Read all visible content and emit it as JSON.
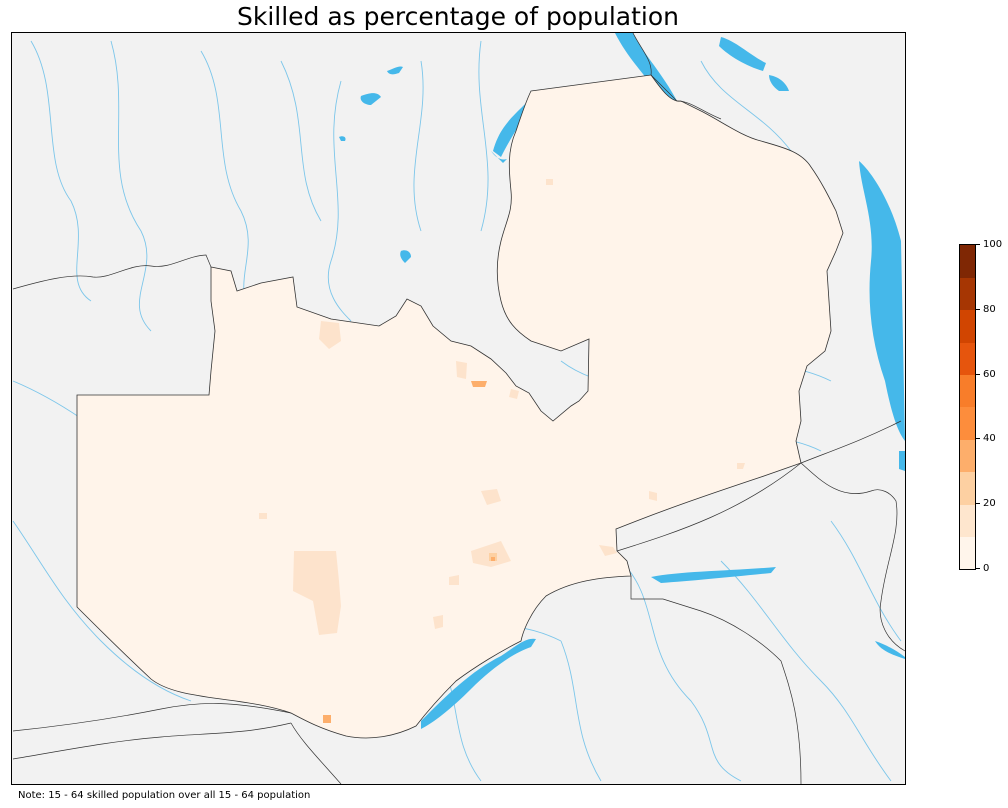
{
  "title": "Skilled as percentage of population",
  "note": "Note: 15 - 64 skilled population over all 15 - 64 population",
  "colors": {
    "background": "#f2f2f2",
    "water": "#45b8ea",
    "river": "#7cc6ea",
    "border": "#333333",
    "country_fill": "#fff4ea",
    "moderate_fill": "#fde3cc"
  },
  "colorbar": {
    "min": 0,
    "max": 100,
    "ticks": [
      "0",
      "20",
      "40",
      "60",
      "80",
      "100"
    ],
    "bins": [
      {
        "from": 0,
        "to": 10,
        "color": "#fff5eb"
      },
      {
        "from": 10,
        "to": 20,
        "color": "#fee6ce"
      },
      {
        "from": 20,
        "to": 30,
        "color": "#fdd0a2"
      },
      {
        "from": 30,
        "to": 40,
        "color": "#fdae6b"
      },
      {
        "from": 40,
        "to": 50,
        "color": "#fd8d3c"
      },
      {
        "from": 50,
        "to": 60,
        "color": "#f87d2a"
      },
      {
        "from": 60,
        "to": 70,
        "color": "#e6550d"
      },
      {
        "from": 70,
        "to": 80,
        "color": "#d14501"
      },
      {
        "from": 80,
        "to": 90,
        "color": "#a63603"
      },
      {
        "from": 90,
        "to": 100,
        "color": "#7f2704"
      }
    ]
  }
}
